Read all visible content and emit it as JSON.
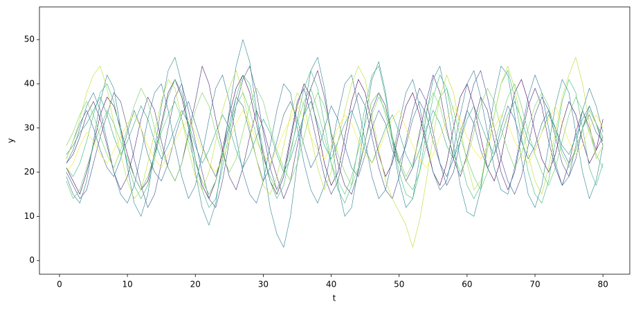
{
  "chart_data": {
    "type": "line",
    "x_label": "t",
    "y_label": "y",
    "xlim": [
      -2.95,
      83.95
    ],
    "ylim": [
      -3.1,
      57.4
    ],
    "xticks": [
      0,
      10,
      20,
      30,
      40,
      50,
      60,
      70,
      80
    ],
    "yticks": [
      0,
      10,
      20,
      30,
      40,
      50
    ],
    "line_width": 0.6,
    "x": [
      1,
      2,
      3,
      4,
      5,
      6,
      7,
      8,
      9,
      10,
      11,
      12,
      13,
      14,
      15,
      16,
      17,
      18,
      19,
      20,
      21,
      22,
      23,
      24,
      25,
      26,
      27,
      28,
      29,
      30,
      31,
      32,
      33,
      34,
      35,
      36,
      37,
      38,
      39,
      40,
      41,
      42,
      43,
      44,
      45,
      46,
      47,
      48,
      49,
      50,
      51,
      52,
      53,
      54,
      55,
      56,
      57,
      58,
      59,
      60,
      61,
      62,
      63,
      64,
      65,
      66,
      67,
      68,
      69,
      70,
      71,
      72,
      73,
      74,
      75,
      76,
      77,
      78,
      79,
      80
    ],
    "series": [
      {
        "color": "#440154",
        "values": [
          21,
          18,
          15,
          20,
          26,
          33,
          37,
          35,
          30,
          24,
          19,
          16,
          18,
          24,
          31,
          38,
          41,
          37,
          30,
          23,
          17,
          14,
          18,
          25,
          33,
          39,
          42,
          38,
          31,
          24,
          18,
          15,
          19,
          27,
          35,
          40,
          37,
          30,
          22,
          17,
          20,
          28,
          36,
          41,
          38,
          31,
          24,
          19,
          22,
          29,
          35,
          38,
          33,
          26,
          20,
          17,
          22,
          30,
          37,
          40,
          35,
          28,
          21,
          18,
          23,
          31,
          38,
          41,
          36,
          29,
          23,
          20,
          24,
          31,
          36,
          33,
          27,
          22,
          25,
          32
        ]
      },
      {
        "color": "#482878",
        "values": [
          22,
          24,
          28,
          33,
          36,
          32,
          26,
          20,
          16,
          19,
          25,
          32,
          37,
          34,
          27,
          21,
          18,
          22,
          29,
          36,
          44,
          40,
          32,
          25,
          19,
          16,
          21,
          28,
          34,
          30,
          24,
          19,
          14,
          18,
          26,
          33,
          39,
          43,
          37,
          29,
          22,
          17,
          15,
          20,
          27,
          34,
          38,
          35,
          28,
          22,
          18,
          21,
          29,
          36,
          42,
          38,
          30,
          23,
          19,
          24,
          31,
          37,
          34,
          27,
          20,
          16,
          20,
          28,
          35,
          39,
          35,
          27,
          21,
          17,
          22,
          29,
          34,
          30,
          25,
          28
        ]
      },
      {
        "color": "#3e4989",
        "values": [
          20,
          17,
          14,
          16,
          22,
          28,
          33,
          38,
          36,
          30,
          23,
          17,
          12,
          15,
          22,
          30,
          37,
          40,
          34,
          27,
          20,
          14,
          12,
          18,
          27,
          35,
          41,
          44,
          38,
          29,
          21,
          16,
          20,
          28,
          36,
          39,
          33,
          26,
          19,
          15,
          18,
          25,
          33,
          38,
          35,
          28,
          21,
          16,
          14,
          19,
          27,
          34,
          39,
          36,
          29,
          22,
          17,
          20,
          27,
          34,
          40,
          43,
          37,
          30,
          23,
          18,
          15,
          19,
          26,
          33,
          37,
          34,
          28,
          22,
          19,
          23,
          30,
          35,
          31,
          26
        ]
      },
      {
        "color": "#31688e",
        "values": [
          23,
          27,
          31,
          34,
          30,
          25,
          21,
          19,
          23,
          29,
          34,
          30,
          24,
          20,
          18,
          22,
          28,
          33,
          36,
          31,
          26,
          22,
          19,
          24,
          31,
          37,
          35,
          29,
          23,
          18,
          21,
          27,
          33,
          36,
          32,
          26,
          21,
          24,
          30,
          35,
          32,
          26,
          21,
          19,
          24,
          30,
          34,
          31,
          25,
          22,
          26,
          32,
          36,
          33,
          27,
          22,
          19,
          23,
          29,
          34,
          31,
          25,
          21,
          24,
          30,
          35,
          32,
          27,
          23,
          26,
          31,
          34,
          30,
          25,
          22,
          25,
          30,
          33,
          29,
          27
        ]
      },
      {
        "color": "#26828e",
        "values": [
          19,
          15,
          13,
          18,
          27,
          36,
          42,
          39,
          30,
          21,
          13,
          10,
          15,
          25,
          35,
          43,
          46,
          40,
          30,
          20,
          12,
          8,
          13,
          23,
          34,
          44,
          50,
          45,
          34,
          22,
          12,
          6,
          3,
          10,
          22,
          34,
          43,
          46,
          39,
          28,
          17,
          10,
          12,
          21,
          32,
          41,
          45,
          38,
          27,
          18,
          12,
          14,
          23,
          33,
          41,
          44,
          36,
          26,
          17,
          11,
          10,
          16,
          27,
          37,
          44,
          42,
          33,
          23,
          15,
          12,
          17,
          26,
          35,
          41,
          38,
          29,
          20,
          14,
          18,
          26
        ]
      },
      {
        "color": "#1f9e89",
        "values": [
          24,
          26,
          29,
          31,
          34,
          37,
          33,
          28,
          24,
          27,
          31,
          35,
          32,
          27,
          23,
          26,
          30,
          34,
          31,
          26,
          22,
          25,
          29,
          33,
          30,
          25,
          21,
          24,
          28,
          32,
          29,
          24,
          20,
          23,
          28,
          33,
          36,
          31,
          26,
          23,
          27,
          31,
          34,
          30,
          25,
          22,
          26,
          30,
          33,
          29,
          24,
          21,
          25,
          30,
          34,
          31,
          26,
          23,
          27,
          32,
          35,
          31,
          27,
          24,
          28,
          33,
          36,
          32,
          27,
          25,
          29,
          33,
          30,
          26,
          24,
          28,
          32,
          35,
          31,
          28
        ]
      },
      {
        "color": "#35b779",
        "values": [
          21,
          19,
          22,
          27,
          33,
          38,
          40,
          36,
          29,
          22,
          17,
          14,
          17,
          23,
          30,
          37,
          41,
          38,
          31,
          23,
          16,
          12,
          14,
          21,
          29,
          37,
          42,
          40,
          33,
          25,
          18,
          14,
          17,
          24,
          32,
          39,
          43,
          39,
          31,
          22,
          16,
          13,
          17,
          26,
          35,
          42,
          44,
          37,
          28,
          20,
          15,
          14,
          20,
          29,
          37,
          42,
          39,
          31,
          23,
          17,
          14,
          17,
          25,
          33,
          40,
          43,
          37,
          28,
          20,
          15,
          13,
          18,
          27,
          36,
          41,
          38,
          30,
          21,
          17,
          22
        ]
      },
      {
        "color": "#2a788e",
        "values": [
          22,
          25,
          30,
          35,
          38,
          34,
          27,
          20,
          15,
          13,
          17,
          24,
          32,
          38,
          40,
          34,
          26,
          19,
          14,
          17,
          24,
          32,
          39,
          42,
          36,
          28,
          20,
          15,
          13,
          18,
          26,
          34,
          40,
          38,
          30,
          22,
          16,
          13,
          17,
          25,
          33,
          40,
          42,
          35,
          27,
          19,
          14,
          16,
          23,
          31,
          38,
          41,
          35,
          27,
          20,
          16,
          18,
          25,
          33,
          40,
          43,
          37,
          29,
          21,
          16,
          15,
          21,
          29,
          37,
          42,
          38,
          30,
          22,
          17,
          19,
          26,
          34,
          39,
          35,
          29
        ]
      },
      {
        "color": "#b5de2b",
        "values": [
          23,
          27,
          32,
          38,
          42,
          44,
          39,
          31,
          24,
          18,
          14,
          16,
          22,
          29,
          36,
          41,
          39,
          32,
          25,
          19,
          16,
          20,
          27,
          34,
          39,
          43,
          38,
          30,
          23,
          17,
          15,
          19,
          26,
          33,
          38,
          35,
          28,
          21,
          16,
          20,
          27,
          34,
          40,
          44,
          41,
          33,
          25,
          18,
          14,
          11,
          8,
          3,
          9,
          18,
          28,
          37,
          42,
          38,
          30,
          22,
          16,
          18,
          25,
          33,
          40,
          44,
          39,
          31,
          24,
          18,
          15,
          21,
          29,
          37,
          42,
          46,
          40,
          31,
          23,
          26
        ]
      },
      {
        "color": "#fde725",
        "values": [
          20,
          22,
          26,
          29,
          27,
          24,
          22,
          25,
          28,
          31,
          33,
          30,
          26,
          23,
          21,
          24,
          27,
          30,
          32,
          29,
          25,
          22,
          20,
          23,
          27,
          31,
          34,
          31,
          27,
          24,
          22,
          25,
          29,
          32,
          35,
          32,
          28,
          25,
          23,
          26,
          30,
          33,
          31,
          27,
          24,
          22,
          25,
          29,
          32,
          34,
          30,
          26,
          23,
          21,
          24,
          28,
          32,
          35,
          32,
          28,
          25,
          23,
          26,
          30,
          33,
          31,
          27,
          24,
          22,
          25,
          29,
          32,
          35,
          31,
          27,
          24,
          26,
          30,
          33,
          30
        ]
      },
      {
        "color": "#52c569",
        "values": [
          18,
          14,
          16,
          21,
          26,
          30,
          34,
          31,
          27,
          23,
          19,
          16,
          19,
          24,
          29,
          33,
          36,
          32,
          27,
          22,
          18,
          15,
          18,
          24,
          30,
          35,
          38,
          34,
          28,
          23,
          19,
          16,
          20,
          25,
          31,
          36,
          39,
          34,
          28,
          22,
          18,
          15,
          19,
          25,
          31,
          36,
          38,
          33,
          27,
          22,
          18,
          16,
          20,
          26,
          32,
          37,
          39,
          34,
          28,
          23,
          19,
          16,
          20,
          26,
          32,
          37,
          40,
          35,
          29,
          24,
          20,
          17,
          21,
          27,
          33,
          37,
          34,
          29,
          24,
          21
        ]
      },
      {
        "color": "#6ece58",
        "values": [
          26,
          29,
          33,
          36,
          33,
          28,
          24,
          21,
          25,
          30,
          35,
          39,
          36,
          30,
          25,
          21,
          18,
          22,
          28,
          34,
          38,
          35,
          29,
          24,
          20,
          23,
          29,
          35,
          39,
          36,
          30,
          25,
          21,
          18,
          22,
          28,
          34,
          38,
          35,
          29,
          24,
          20,
          17,
          21,
          27,
          33,
          37,
          34,
          28,
          23,
          19,
          22,
          28,
          34,
          38,
          35,
          29,
          24,
          20,
          23,
          29,
          35,
          39,
          36,
          30,
          25,
          21,
          24,
          30,
          35,
          38,
          35,
          29,
          24,
          21,
          25,
          30,
          34,
          31,
          27
        ]
      }
    ]
  }
}
